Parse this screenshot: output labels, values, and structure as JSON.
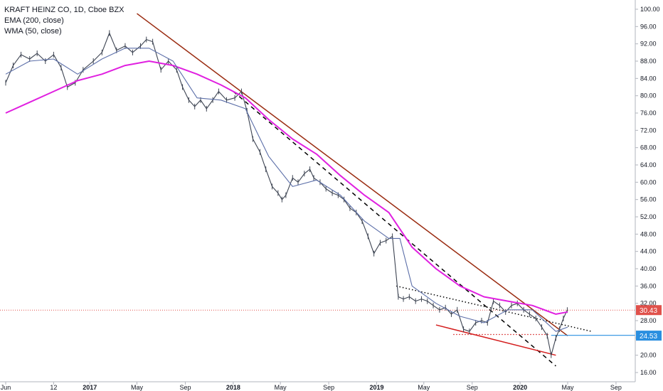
{
  "chart_data": {
    "type": "line",
    "title": "KRAFT HEINZ CO, 1D, Cboe BZX",
    "indicators": [
      "EMA (200, close)",
      "WMA (50, close)"
    ],
    "colors": {
      "price": "#3d4452",
      "ema": "#e020e0",
      "wma": "#5b6ea8",
      "main_trend": "#9a2b10",
      "channel": "#d41e1e",
      "current_price": "#e0514b",
      "support_badge": "#2a8fe0"
    },
    "y_axis": {
      "position": "right",
      "scale": "linear",
      "range": [
        16,
        100
      ],
      "ticks": [
        "100.00",
        "96.00",
        "92.00",
        "88.00",
        "84.00",
        "80.00",
        "76.00",
        "72.00",
        "68.00",
        "64.00",
        "60.00",
        "56.00",
        "52.00",
        "48.00",
        "44.00",
        "40.00",
        "36.00",
        "32.00",
        "28.00",
        "24.00",
        "20.00",
        "16.00"
      ]
    },
    "x_axis": {
      "ticks": [
        "Jun",
        "12",
        "2017",
        "May",
        "Sep",
        "2018",
        "May",
        "Sep",
        "2019",
        "May",
        "Sep",
        "2020",
        "May",
        "Sep"
      ],
      "tick_dates": [
        "2016-06-01",
        "2016-10-01",
        "2017-01-01",
        "2017-05-01",
        "2017-09-01",
        "2018-01-01",
        "2018-05-01",
        "2018-09-01",
        "2019-01-01",
        "2019-05-01",
        "2019-09-01",
        "2020-01-01",
        "2020-05-01",
        "2020-09-01"
      ],
      "range": [
        "2016-06-01",
        "2020-10-20"
      ]
    },
    "grid": false,
    "legend": "top-left",
    "series": [
      {
        "name": "KRAFT HEINZ CO",
        "points": [
          [
            "2016-06-01",
            83.0
          ],
          [
            "2016-06-20",
            87.0
          ],
          [
            "2016-07-10",
            89.5
          ],
          [
            "2016-08-01",
            88.5
          ],
          [
            "2016-08-20",
            89.8
          ],
          [
            "2016-09-10",
            88.0
          ],
          [
            "2016-10-01",
            89.5
          ],
          [
            "2016-10-20",
            86.5
          ],
          [
            "2016-11-05",
            82.0
          ],
          [
            "2016-11-25",
            83.0
          ],
          [
            "2016-12-15",
            86.0
          ],
          [
            "2017-01-10",
            88.0
          ],
          [
            "2017-02-01",
            90.0
          ],
          [
            "2017-02-20",
            94.5
          ],
          [
            "2017-03-10",
            90.5
          ],
          [
            "2017-04-01",
            91.5
          ],
          [
            "2017-04-20",
            90.0
          ],
          [
            "2017-05-10",
            91.5
          ],
          [
            "2017-05-25",
            93.0
          ],
          [
            "2017-06-10",
            92.5
          ],
          [
            "2017-07-01",
            86.0
          ],
          [
            "2017-07-20",
            88.0
          ],
          [
            "2017-08-10",
            86.0
          ],
          [
            "2017-08-25",
            82.0
          ],
          [
            "2017-09-10",
            79.0
          ],
          [
            "2017-09-25",
            77.5
          ],
          [
            "2017-10-10",
            79.0
          ],
          [
            "2017-10-25",
            77.0
          ],
          [
            "2017-11-10",
            79.0
          ],
          [
            "2017-11-25",
            81.0
          ],
          [
            "2017-12-15",
            79.0
          ],
          [
            "2018-01-05",
            79.5
          ],
          [
            "2018-01-22",
            81.0
          ],
          [
            "2018-02-05",
            76.5
          ],
          [
            "2018-02-20",
            70.0
          ],
          [
            "2018-03-10",
            67.0
          ],
          [
            "2018-03-25",
            63.0
          ],
          [
            "2018-04-10",
            59.0
          ],
          [
            "2018-04-25",
            57.5
          ],
          [
            "2018-05-05",
            56.0
          ],
          [
            "2018-05-15",
            57.0
          ],
          [
            "2018-06-01",
            61.0
          ],
          [
            "2018-06-15",
            60.0
          ],
          [
            "2018-07-01",
            62.0
          ],
          [
            "2018-07-15",
            63.0
          ],
          [
            "2018-07-25",
            61.0
          ],
          [
            "2018-08-10",
            60.0
          ],
          [
            "2018-08-25",
            58.5
          ],
          [
            "2018-09-10",
            57.5
          ],
          [
            "2018-09-25",
            57.0
          ],
          [
            "2018-10-10",
            56.0
          ],
          [
            "2018-10-25",
            54.0
          ],
          [
            "2018-11-10",
            53.0
          ],
          [
            "2018-11-25",
            51.0
          ],
          [
            "2018-12-10",
            47.5
          ],
          [
            "2018-12-25",
            43.5
          ],
          [
            "2019-01-10",
            46.0
          ],
          [
            "2019-01-25",
            46.5
          ],
          [
            "2019-02-10",
            47.5
          ],
          [
            "2019-02-25",
            33.5
          ],
          [
            "2019-03-10",
            33.0
          ],
          [
            "2019-03-25",
            33.5
          ],
          [
            "2019-04-10",
            32.5
          ],
          [
            "2019-04-25",
            33.0
          ],
          [
            "2019-05-10",
            32.5
          ],
          [
            "2019-05-25",
            31.5
          ],
          [
            "2019-06-10",
            30.5
          ],
          [
            "2019-06-25",
            31.0
          ],
          [
            "2019-07-10",
            29.5
          ],
          [
            "2019-07-25",
            30.5
          ],
          [
            "2019-08-10",
            26.0
          ],
          [
            "2019-08-25",
            25.5
          ],
          [
            "2019-09-10",
            27.5
          ],
          [
            "2019-09-25",
            28.0
          ],
          [
            "2019-10-10",
            27.5
          ],
          [
            "2019-10-25",
            32.5
          ],
          [
            "2019-11-10",
            31.5
          ],
          [
            "2019-11-25",
            30.0
          ],
          [
            "2019-12-10",
            31.5
          ],
          [
            "2019-12-25",
            32.0
          ],
          [
            "2020-01-10",
            30.5
          ],
          [
            "2020-01-25",
            29.5
          ],
          [
            "2020-02-10",
            28.5
          ],
          [
            "2020-02-25",
            26.5
          ],
          [
            "2020-03-10",
            24.5
          ],
          [
            "2020-03-20",
            20.0
          ],
          [
            "2020-04-01",
            24.0
          ],
          [
            "2020-04-10",
            26.0
          ],
          [
            "2020-04-20",
            28.5
          ],
          [
            "2020-04-30",
            30.43
          ]
        ]
      },
      {
        "name": "EMA (200, close)",
        "points": [
          [
            "2016-06-01",
            76.0
          ],
          [
            "2016-08-01",
            78.5
          ],
          [
            "2016-10-01",
            81.0
          ],
          [
            "2016-12-01",
            83.5
          ],
          [
            "2017-02-01",
            85.0
          ],
          [
            "2017-04-01",
            87.0
          ],
          [
            "2017-06-01",
            88.0
          ],
          [
            "2017-08-01",
            87.0
          ],
          [
            "2017-10-01",
            85.0
          ],
          [
            "2017-12-01",
            82.5
          ],
          [
            "2018-02-01",
            79.5
          ],
          [
            "2018-04-01",
            74.5
          ],
          [
            "2018-06-01",
            70.0
          ],
          [
            "2018-08-01",
            66.5
          ],
          [
            "2018-10-01",
            61.5
          ],
          [
            "2018-12-01",
            57.0
          ],
          [
            "2019-02-01",
            53.0
          ],
          [
            "2019-04-01",
            45.0
          ],
          [
            "2019-06-01",
            40.0
          ],
          [
            "2019-08-01",
            36.0
          ],
          [
            "2019-10-01",
            33.5
          ],
          [
            "2019-12-01",
            32.5
          ],
          [
            "2020-02-01",
            31.5
          ],
          [
            "2020-04-01",
            29.5
          ],
          [
            "2020-05-01",
            30.0
          ]
        ]
      },
      {
        "name": "WMA (50, close)",
        "points": [
          [
            "2016-06-01",
            85.0
          ],
          [
            "2016-08-01",
            88.0
          ],
          [
            "2016-10-01",
            88.5
          ],
          [
            "2016-12-01",
            85.0
          ],
          [
            "2017-02-01",
            88.5
          ],
          [
            "2017-04-01",
            91.0
          ],
          [
            "2017-06-01",
            91.0
          ],
          [
            "2017-08-01",
            88.0
          ],
          [
            "2017-10-01",
            79.5
          ],
          [
            "2017-12-01",
            79.0
          ],
          [
            "2018-02-01",
            77.0
          ],
          [
            "2018-04-01",
            66.0
          ],
          [
            "2018-06-01",
            59.0
          ],
          [
            "2018-08-01",
            60.5
          ],
          [
            "2018-10-01",
            57.0
          ],
          [
            "2018-12-01",
            51.0
          ],
          [
            "2019-02-01",
            47.0
          ],
          [
            "2019-03-01",
            47.0
          ],
          [
            "2019-04-01",
            36.0
          ],
          [
            "2019-06-01",
            32.0
          ],
          [
            "2019-08-01",
            29.0
          ],
          [
            "2019-10-01",
            27.5
          ],
          [
            "2019-12-01",
            30.5
          ],
          [
            "2020-02-01",
            30.5
          ],
          [
            "2020-04-01",
            25.5
          ],
          [
            "2020-05-01",
            26.5
          ]
        ]
      }
    ],
    "drawings": [
      {
        "kind": "trend_main",
        "from": [
          "2017-05-01",
          99.0
        ],
        "to": [
          "2020-05-01",
          24.5
        ]
      },
      {
        "kind": "trend_dashed",
        "from": [
          "2018-01-01",
          81.0
        ],
        "to": [
          "2020-04-01",
          17.5
        ]
      },
      {
        "kind": "trend_dotted",
        "from": [
          "2019-02-20",
          36.0
        ],
        "to": [
          "2020-07-01",
          25.5
        ]
      },
      {
        "kind": "channel_lower",
        "from": [
          "2019-06-01",
          27.0
        ],
        "to": [
          "2020-04-01",
          20.0
        ]
      },
      {
        "kind": "support_dotted",
        "from": [
          "2019-07-15",
          24.8
        ],
        "to": [
          "2020-03-15",
          24.8
        ]
      },
      {
        "kind": "support_level",
        "from": [
          "2020-03-20",
          24.6
        ],
        "to": [
          "2020-10-20",
          24.6
        ]
      }
    ],
    "price_labels": [
      {
        "name": "current",
        "value": "30.43",
        "y": 30.43
      },
      {
        "name": "support",
        "value": "24.53",
        "y": 24.53
      }
    ]
  }
}
